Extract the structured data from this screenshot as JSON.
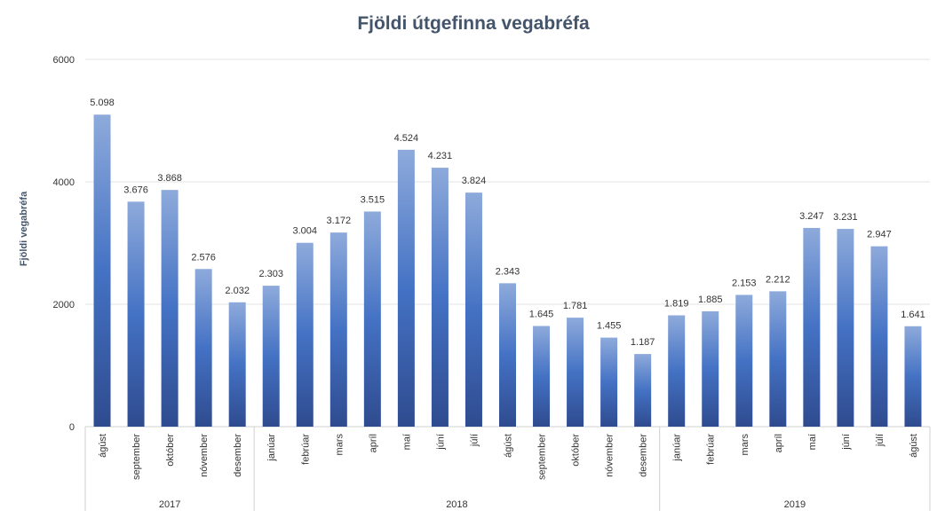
{
  "chart_data": {
    "type": "bar",
    "title": "Fjöldi útgefinna vegabréfa",
    "xlabel": "",
    "ylabel": "Fjöldi vegabréfa",
    "ylim": [
      0,
      6000
    ],
    "yticks": [
      0,
      2000,
      4000,
      6000
    ],
    "grid": true,
    "legend": "none",
    "colors": {
      "bar_top": "#8eaadb",
      "bar_mid": "#4472c4",
      "bar_bottom": "#2f4b8f",
      "gridline": "#e3e3e3"
    },
    "groups": [
      {
        "year": "2017",
        "categories": [
          "ágúst",
          "september",
          "október",
          "nóvember",
          "desember"
        ],
        "values": [
          5098,
          3676,
          3868,
          2576,
          2032
        ],
        "labels": [
          "5.098",
          "3.676",
          "3.868",
          "2.576",
          "2.032"
        ]
      },
      {
        "year": "2018",
        "categories": [
          "janúar",
          "febrúar",
          "mars",
          "apríl",
          "maí",
          "júní",
          "júlí",
          "ágúst",
          "september",
          "október",
          "nóvember",
          "desember"
        ],
        "values": [
          2303,
          3004,
          3172,
          3515,
          4524,
          4231,
          3824,
          2343,
          1645,
          1781,
          1455,
          1187
        ],
        "labels": [
          "2.303",
          "3.004",
          "3.172",
          "3.515",
          "4.524",
          "4.231",
          "3.824",
          "2.343",
          "1.645",
          "1.781",
          "1.455",
          "1.187"
        ]
      },
      {
        "year": "2019",
        "categories": [
          "janúar",
          "febrúar",
          "mars",
          "apríl",
          "maí",
          "júní",
          "júlí",
          "ágúst"
        ],
        "values": [
          1819,
          1885,
          2153,
          2212,
          3247,
          3231,
          2947,
          1641
        ],
        "labels": [
          "1.819",
          "1.885",
          "2.153",
          "2.212",
          "3.247",
          "3.231",
          "2.947",
          "1.641"
        ]
      }
    ]
  }
}
